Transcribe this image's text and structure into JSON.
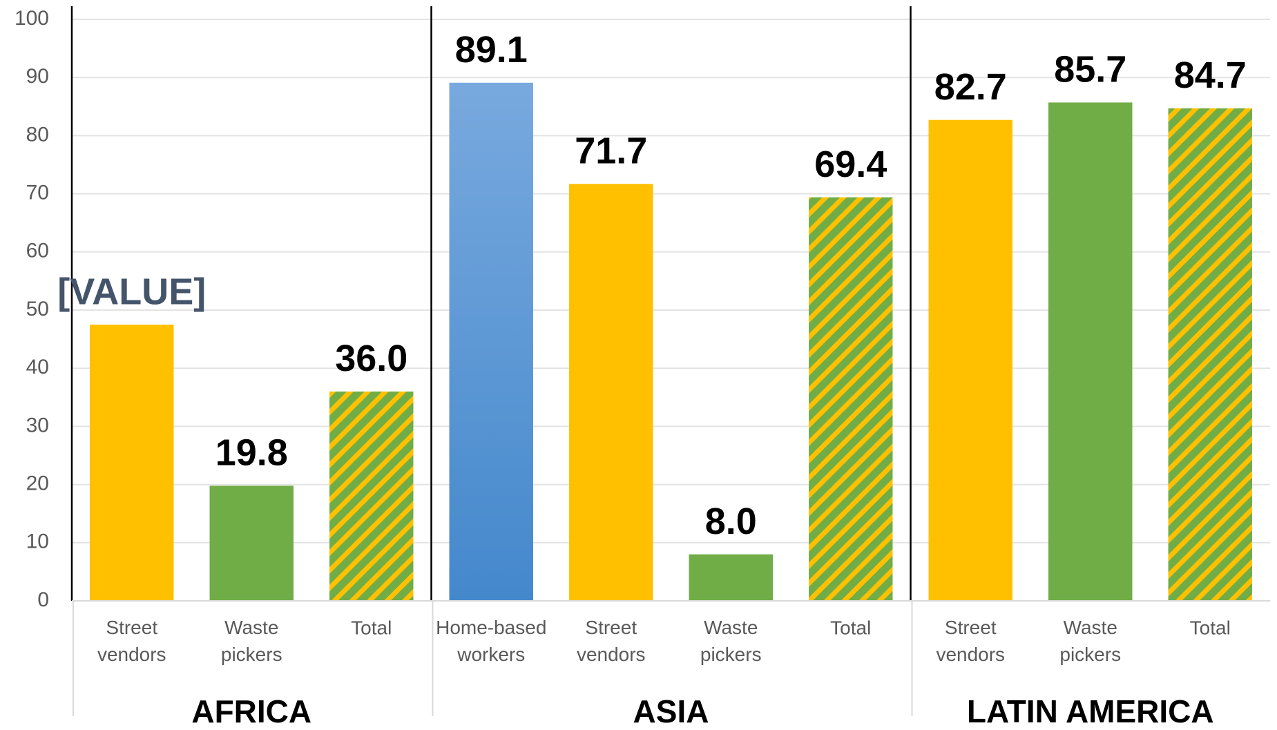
{
  "chart_data": {
    "type": "bar",
    "groups": [
      {
        "name": "AFRICA",
        "categories": [
          "Street vendors",
          "Waste pickers",
          "Total"
        ],
        "values": [
          47.5,
          19.8,
          36.0
        ],
        "value_labels": [
          "[VALUE]",
          "19.8",
          "36.0"
        ],
        "colors": [
          "#ffc000",
          "#70ad47",
          "#ffc000"
        ],
        "hatched": [
          false,
          false,
          true
        ]
      },
      {
        "name": "ASIA",
        "categories": [
          "Home-based workers",
          "Street vendors",
          "Waste pickers",
          "Total"
        ],
        "values": [
          89.1,
          71.7,
          8.0,
          69.4
        ],
        "value_labels": [
          "89.1",
          "71.7",
          "8.0",
          "69.4"
        ],
        "colors": [
          "#5b9bd5",
          "#ffc000",
          "#70ad47",
          "#ffc000"
        ],
        "hatched": [
          false,
          false,
          false,
          true
        ]
      },
      {
        "name": "LATIN AMERICA",
        "categories": [
          "Street vendors",
          "Waste pickers",
          "Total"
        ],
        "values": [
          82.7,
          85.7,
          84.7
        ],
        "value_labels": [
          "82.7",
          "85.7",
          "84.7"
        ],
        "colors": [
          "#ffc000",
          "#70ad47",
          "#ffc000"
        ],
        "hatched": [
          false,
          false,
          true
        ]
      }
    ],
    "ylim": [
      0,
      100
    ],
    "yticks": [
      0,
      10,
      20,
      30,
      40,
      50,
      60,
      70,
      80,
      90,
      100
    ],
    "grid": true
  }
}
